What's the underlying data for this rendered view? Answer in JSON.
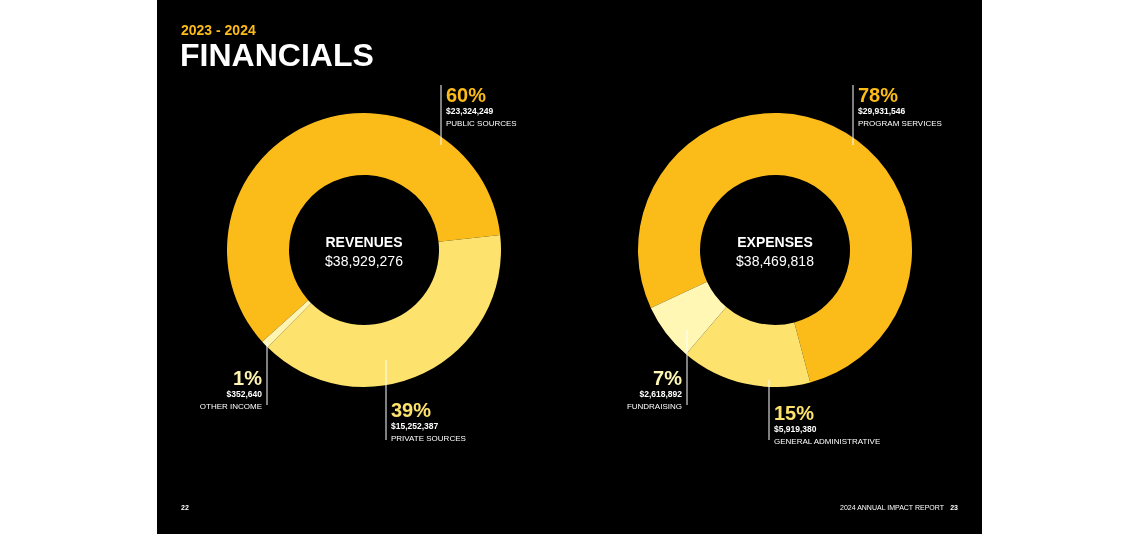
{
  "chart_data": [
    {
      "type": "donut",
      "title": "REVENUES",
      "subtitle": "$38,929,276",
      "categories": [
        "PUBLIC SOURCES",
        "PRIVATE SOURCES",
        "OTHER INCOME"
      ],
      "values": [
        23324249,
        15252387,
        352640
      ],
      "colors": [
        "#fbbb19",
        "#fde26d",
        "#fff4b0"
      ],
      "value_labels": [
        "$23,324,249",
        "$15,252,387",
        "$352,640"
      ],
      "annotations": [
        {
          "text": "60%",
          "x": "PUBLIC SOURCES"
        },
        {
          "text": "39%",
          "x": "PRIVATE SOURCES"
        },
        {
          "text": "1%",
          "x": "OTHER INCOME"
        },
        "2023 - 2024",
        "FINANCIALS",
        "22"
      ]
    },
    {
      "type": "donut",
      "title": "EXPENSES",
      "subtitle": "$38,469,818",
      "categories": [
        "PROGRAM SERVICES",
        "GENERAL ADMINISTRATIVE",
        "FUNDRAISING"
      ],
      "values": [
        29931546,
        5919380,
        2618892
      ],
      "colors": [
        "#fbbb19",
        "#fde26d",
        "#fff7b3"
      ],
      "value_labels": [
        "$29,931,546",
        "$5,919,380",
        "$2,618,892"
      ],
      "annotations": [
        {
          "text": "78%",
          "x": "PROGRAM SERVICES"
        },
        {
          "text": "15%",
          "x": "GENERAL ADMINISTRATIVE"
        },
        {
          "text": "7%",
          "x": "FUNDRAISING"
        },
        "2024 ANNUAL IMPACT REPORT",
        "23"
      ]
    }
  ]
}
